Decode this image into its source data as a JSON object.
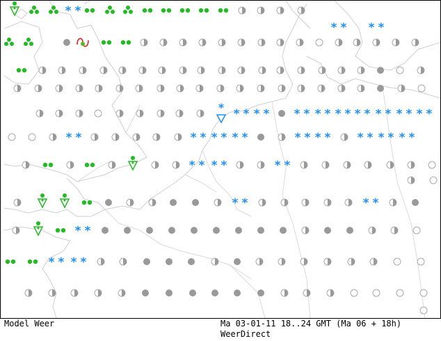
{
  "footer": {
    "left": "Model Weer",
    "right": "Ma 03-01-11 18..24 GMT (Ma 06 + 18h)",
    "credit": "WeerDirect"
  },
  "colors": {
    "rain": "#22bb22",
    "snow": "#1e90ff",
    "thunder": "#dd2222",
    "cloud_fill": "#999999",
    "cloud_outline": "#aaaaaa",
    "coastline": "#cfcfcf"
  },
  "legend_symbols": {
    "overcast": "filled-grey-dot",
    "partly_cloudy": "half-filled-grey-dot",
    "clear": "empty-grey-circle",
    "rain": "green-dots",
    "showers": "green-triangle-with-dots",
    "snow": "blue-asterisks",
    "snow_shower": "blue-triangle-with-asterisk",
    "thunder": "red-wave"
  }
}
